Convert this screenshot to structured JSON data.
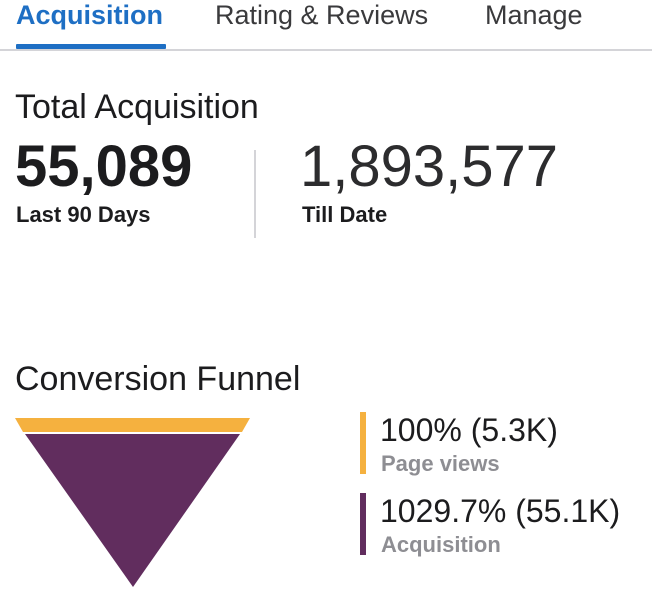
{
  "tabs": [
    {
      "label": "Acquisition",
      "active": true
    },
    {
      "label": "Rating & Reviews",
      "active": false
    },
    {
      "label": "Manage",
      "active": false
    }
  ],
  "total": {
    "title": "Total Acquisition",
    "recent_value": "55,089",
    "recent_label": "Last 90 Days",
    "all_value": "1,893,577",
    "all_label": "Till Date"
  },
  "funnel": {
    "title": "Conversion Funnel",
    "stages": [
      {
        "value": "100% (5.3K)",
        "label": "Page views",
        "color": "#f5b13f"
      },
      {
        "value": "1029.7% (55.1K)",
        "label": "Acquisition",
        "color": "#612d5e"
      }
    ]
  },
  "colors": {
    "accent": "#1e6fc4",
    "funnel_top": "#f5b13f",
    "funnel_body": "#612d5e"
  }
}
